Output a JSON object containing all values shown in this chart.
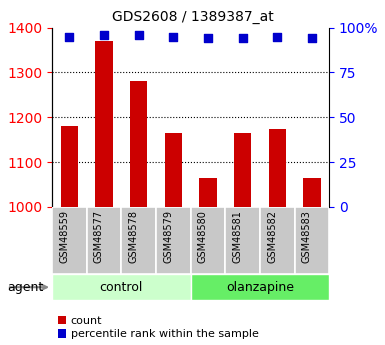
{
  "title": "GDS2608 / 1389387_at",
  "categories": [
    "GSM48559",
    "GSM48577",
    "GSM48578",
    "GSM48579",
    "GSM48580",
    "GSM48581",
    "GSM48582",
    "GSM48583"
  ],
  "bar_values": [
    1180,
    1370,
    1280,
    1165,
    1065,
    1165,
    1175,
    1065
  ],
  "percentile_values": [
    95,
    96,
    96,
    95,
    94,
    94,
    95,
    94
  ],
  "bar_color": "#cc0000",
  "dot_color": "#0000cc",
  "ylim_left": [
    1000,
    1400
  ],
  "ylim_right": [
    0,
    100
  ],
  "yticks_left": [
    1000,
    1100,
    1200,
    1300,
    1400
  ],
  "yticks_right": [
    0,
    25,
    50,
    75,
    100
  ],
  "ytick_labels_right": [
    "0",
    "25",
    "50",
    "75",
    "100%"
  ],
  "grid_ticks": [
    1100,
    1200,
    1300
  ],
  "group_labels": [
    "control",
    "olanzapine"
  ],
  "group_ranges": [
    [
      0,
      4
    ],
    [
      4,
      8
    ]
  ],
  "group_colors": [
    "#ccffcc",
    "#66ee66"
  ],
  "agent_label": "agent",
  "legend_count": "count",
  "legend_percentile": "percentile rank within the sample",
  "tick_area_color": "#c8c8c8",
  "bar_bottom": 1000,
  "bar_width": 0.5
}
